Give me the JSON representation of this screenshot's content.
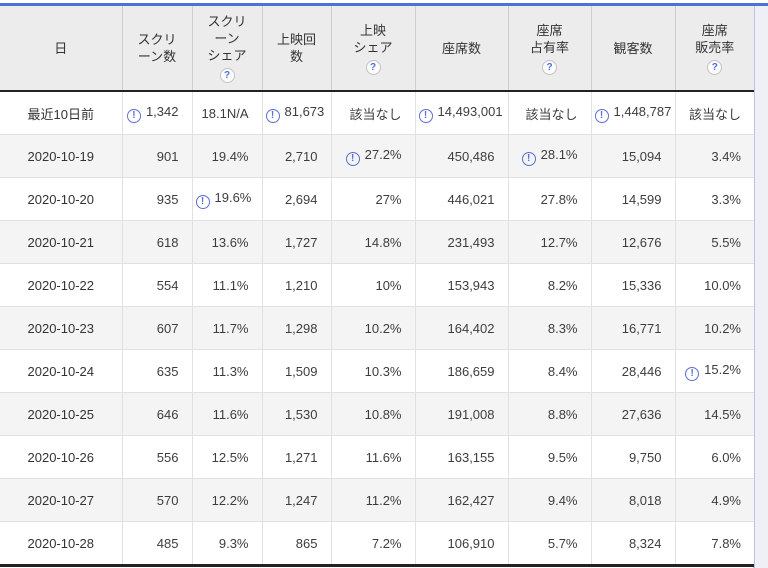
{
  "accent_color": "#4a72d8",
  "icons": {
    "info_glyph": "!",
    "help_glyph": "?"
  },
  "table": {
    "columns": [
      {
        "label": "日",
        "help": false,
        "type": "date"
      },
      {
        "label": "スクリ\nーン数",
        "help": false
      },
      {
        "label": "スクリ\nーン\nシェア",
        "help": true
      },
      {
        "label": "上映回\n数",
        "help": false
      },
      {
        "label": "上映\nシェア",
        "help": true
      },
      {
        "label": "座席数",
        "help": false
      },
      {
        "label": "座席\n占有率",
        "help": true
      },
      {
        "label": "観客数",
        "help": false
      },
      {
        "label": "座席\n販売率",
        "help": true
      }
    ],
    "rows": [
      {
        "date": "最近10日前",
        "cells": [
          {
            "v": "1,342",
            "info": true
          },
          {
            "v": "18.1N/A",
            "info": false
          },
          {
            "v": "81,673",
            "info": true
          },
          {
            "v": "該当なし",
            "info": false
          },
          {
            "v": "14,493,001",
            "info": true
          },
          {
            "v": "該当なし",
            "info": false
          },
          {
            "v": "1,448,787",
            "info": true
          },
          {
            "v": "該当なし",
            "info": false
          }
        ]
      },
      {
        "date": "2020-10-19",
        "cells": [
          {
            "v": "901",
            "info": false
          },
          {
            "v": "19.4%",
            "info": false
          },
          {
            "v": "2,710",
            "info": false
          },
          {
            "v": "27.2%",
            "info": true
          },
          {
            "v": "450,486",
            "info": false
          },
          {
            "v": "28.1%",
            "info": true
          },
          {
            "v": "15,094",
            "info": false
          },
          {
            "v": "3.4%",
            "info": false
          }
        ]
      },
      {
        "date": "2020-10-20",
        "cells": [
          {
            "v": "935",
            "info": false
          },
          {
            "v": "19.6%",
            "info": true
          },
          {
            "v": "2,694",
            "info": false
          },
          {
            "v": "27%",
            "info": false
          },
          {
            "v": "446,021",
            "info": false
          },
          {
            "v": "27.8%",
            "info": false
          },
          {
            "v": "14,599",
            "info": false
          },
          {
            "v": "3.3%",
            "info": false
          }
        ]
      },
      {
        "date": "2020-10-21",
        "cells": [
          {
            "v": "618",
            "info": false
          },
          {
            "v": "13.6%",
            "info": false
          },
          {
            "v": "1,727",
            "info": false
          },
          {
            "v": "14.8%",
            "info": false
          },
          {
            "v": "231,493",
            "info": false
          },
          {
            "v": "12.7%",
            "info": false
          },
          {
            "v": "12,676",
            "info": false
          },
          {
            "v": "5.5%",
            "info": false
          }
        ]
      },
      {
        "date": "2020-10-22",
        "cells": [
          {
            "v": "554",
            "info": false
          },
          {
            "v": "11.1%",
            "info": false
          },
          {
            "v": "1,210",
            "info": false
          },
          {
            "v": "10%",
            "info": false
          },
          {
            "v": "153,943",
            "info": false
          },
          {
            "v": "8.2%",
            "info": false
          },
          {
            "v": "15,336",
            "info": false
          },
          {
            "v": "10.0%",
            "info": false
          }
        ]
      },
      {
        "date": "2020-10-23",
        "cells": [
          {
            "v": "607",
            "info": false
          },
          {
            "v": "11.7%",
            "info": false
          },
          {
            "v": "1,298",
            "info": false
          },
          {
            "v": "10.2%",
            "info": false
          },
          {
            "v": "164,402",
            "info": false
          },
          {
            "v": "8.3%",
            "info": false
          },
          {
            "v": "16,771",
            "info": false
          },
          {
            "v": "10.2%",
            "info": false
          }
        ]
      },
      {
        "date": "2020-10-24",
        "cells": [
          {
            "v": "635",
            "info": false
          },
          {
            "v": "11.3%",
            "info": false
          },
          {
            "v": "1,509",
            "info": false
          },
          {
            "v": "10.3%",
            "info": false
          },
          {
            "v": "186,659",
            "info": false
          },
          {
            "v": "8.4%",
            "info": false
          },
          {
            "v": "28,446",
            "info": false
          },
          {
            "v": "15.2%",
            "info": true
          }
        ]
      },
      {
        "date": "2020-10-25",
        "cells": [
          {
            "v": "646",
            "info": false
          },
          {
            "v": "11.6%",
            "info": false
          },
          {
            "v": "1,530",
            "info": false
          },
          {
            "v": "10.8%",
            "info": false
          },
          {
            "v": "191,008",
            "info": false
          },
          {
            "v": "8.8%",
            "info": false
          },
          {
            "v": "27,636",
            "info": false
          },
          {
            "v": "14.5%",
            "info": false
          }
        ]
      },
      {
        "date": "2020-10-26",
        "cells": [
          {
            "v": "556",
            "info": false
          },
          {
            "v": "12.5%",
            "info": false
          },
          {
            "v": "1,271",
            "info": false
          },
          {
            "v": "11.6%",
            "info": false
          },
          {
            "v": "163,155",
            "info": false
          },
          {
            "v": "9.5%",
            "info": false
          },
          {
            "v": "9,750",
            "info": false
          },
          {
            "v": "6.0%",
            "info": false
          }
        ]
      },
      {
        "date": "2020-10-27",
        "cells": [
          {
            "v": "570",
            "info": false
          },
          {
            "v": "12.2%",
            "info": false
          },
          {
            "v": "1,247",
            "info": false
          },
          {
            "v": "11.2%",
            "info": false
          },
          {
            "v": "162,427",
            "info": false
          },
          {
            "v": "9.4%",
            "info": false
          },
          {
            "v": "8,018",
            "info": false
          },
          {
            "v": "4.9%",
            "info": false
          }
        ]
      },
      {
        "date": "2020-10-28",
        "cells": [
          {
            "v": "485",
            "info": false
          },
          {
            "v": "9.3%",
            "info": false
          },
          {
            "v": "865",
            "info": false
          },
          {
            "v": "7.2%",
            "info": false
          },
          {
            "v": "106,910",
            "info": false
          },
          {
            "v": "5.7%",
            "info": false
          },
          {
            "v": "8,324",
            "info": false
          },
          {
            "v": "7.8%",
            "info": false
          }
        ]
      }
    ]
  }
}
